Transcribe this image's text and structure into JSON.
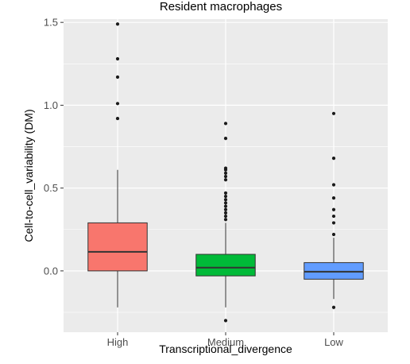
{
  "chart_data": {
    "type": "box",
    "title": "Resident macrophages",
    "xlabel": "Transcriptional_divergence",
    "ylabel": "Cell-to-cell_variability (DM)",
    "ylim": [
      -0.37,
      1.52
    ],
    "yticks": [
      "0.0",
      "0.5",
      "1.0",
      "1.5"
    ],
    "ytick_values": [
      0.0,
      0.5,
      1.0,
      1.5
    ],
    "grid": true,
    "legend": "none",
    "categories": [
      "High",
      "Medium",
      "Low"
    ],
    "boxes": [
      {
        "category": "High",
        "color": "#F8766D",
        "whisker_low": -0.22,
        "q1": 0.0,
        "median": 0.115,
        "q3": 0.29,
        "whisker_high": 0.61,
        "outliers": [
          0.92,
          1.01,
          1.17,
          1.28,
          1.49
        ]
      },
      {
        "category": "Medium",
        "color": "#00BA38",
        "whisker_low": -0.22,
        "q1": -0.03,
        "median": 0.02,
        "q3": 0.1,
        "whisker_high": 0.29,
        "outliers": [
          -0.3,
          0.31,
          0.33,
          0.35,
          0.37,
          0.39,
          0.41,
          0.43,
          0.45,
          0.47,
          0.55,
          0.57,
          0.59,
          0.61,
          0.62,
          0.8,
          0.89
        ]
      },
      {
        "category": "Low",
        "color": "#619CFF",
        "whisker_low": -0.17,
        "q1": -0.05,
        "median": -0.005,
        "q3": 0.05,
        "whisker_high": 0.2,
        "outliers": [
          -0.22,
          0.22,
          0.29,
          0.33,
          0.37,
          0.44,
          0.52,
          0.68,
          0.95
        ]
      }
    ]
  }
}
